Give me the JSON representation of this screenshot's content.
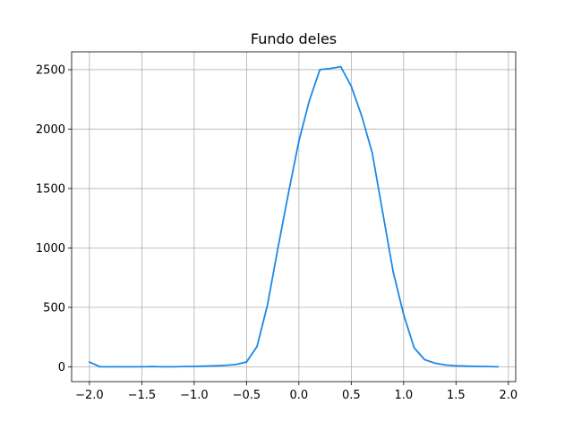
{
  "chart_data": {
    "type": "line",
    "title": "Fundo deles",
    "xlabel": "",
    "ylabel": "",
    "xlim": [
      -2.17,
      2.07
    ],
    "ylim": [
      -125,
      2650
    ],
    "grid": true,
    "x_ticks": [
      -2.0,
      -1.5,
      -1.0,
      -0.5,
      0.0,
      0.5,
      1.0,
      1.5,
      2.0
    ],
    "x_tick_labels": [
      "−2.0",
      "−1.5",
      "−1.0",
      "−0.5",
      "0.0",
      "0.5",
      "1.0",
      "1.5",
      "2.0"
    ],
    "y_ticks": [
      0,
      500,
      1000,
      1500,
      2000,
      2500
    ],
    "y_tick_labels": [
      "0",
      "500",
      "1000",
      "1500",
      "2000",
      "2500"
    ],
    "series": [
      {
        "color": "#1e88e5",
        "x": [
          -2.0,
          -1.9,
          -1.8,
          -1.7,
          -1.6,
          -1.5,
          -1.4,
          -1.3,
          -1.2,
          -1.1,
          -1.0,
          -0.9,
          -0.8,
          -0.7,
          -0.6,
          -0.5,
          -0.4,
          -0.3,
          -0.2,
          -0.1,
          0.0,
          0.1,
          0.2,
          0.3,
          0.4,
          0.5,
          0.6,
          0.7,
          0.8,
          0.9,
          1.0,
          1.1,
          1.2,
          1.3,
          1.4,
          1.5,
          1.6,
          1.7,
          1.8,
          1.9
        ],
        "y": [
          40,
          0,
          0,
          0,
          0,
          0,
          2,
          0,
          0,
          2,
          3,
          5,
          8,
          12,
          20,
          40,
          170,
          520,
          1000,
          1460,
          1900,
          2240,
          2500,
          2510,
          2525,
          2360,
          2110,
          1800,
          1300,
          800,
          440,
          160,
          60,
          30,
          15,
          8,
          5,
          3,
          2,
          0
        ]
      }
    ]
  }
}
